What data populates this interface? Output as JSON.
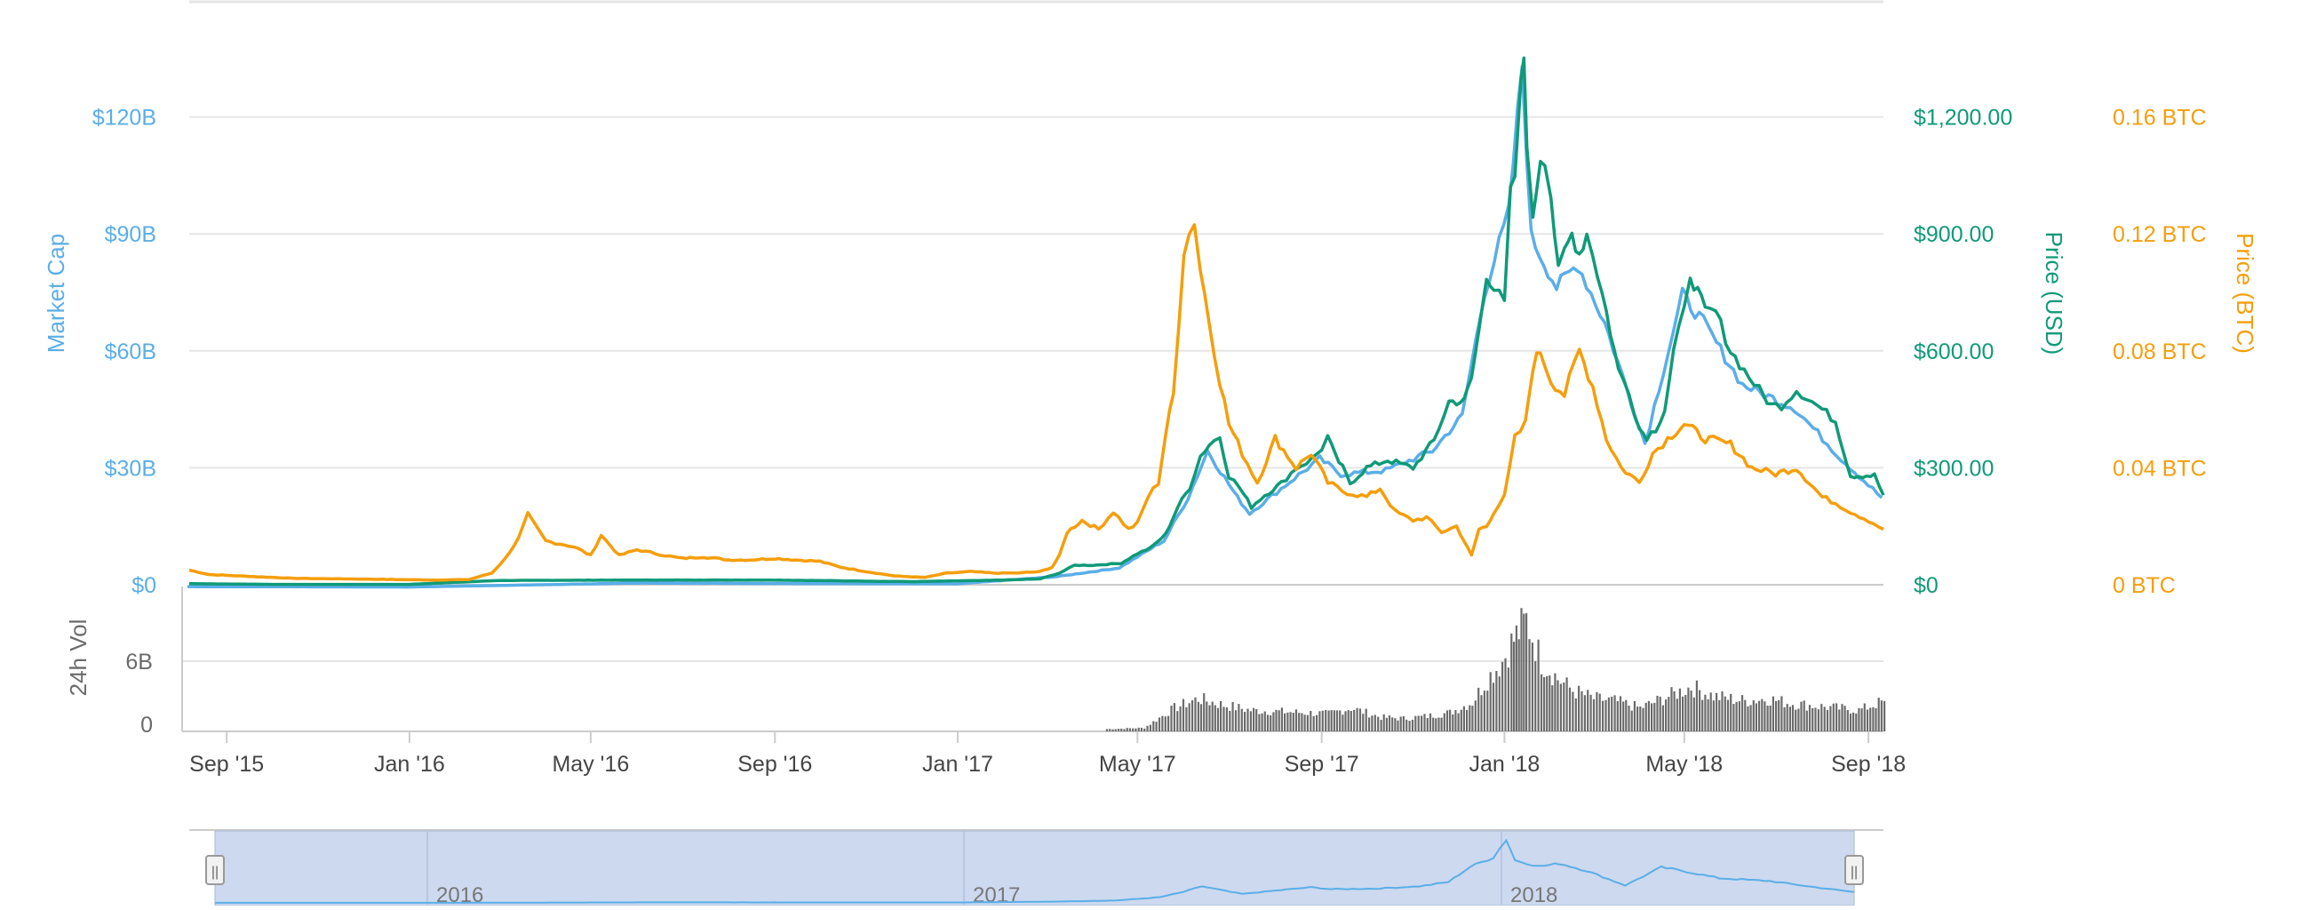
{
  "colors": {
    "market_cap": "#5aaee8",
    "price_usd": "#0f9a78",
    "price_btc": "#f59e0b",
    "volume": "#6b6b6b",
    "axis_muted": "#6b6b6b",
    "grid": "#e6e6e6",
    "navigator_fill": "#cdd9ef",
    "navigator_line": "#5aaee8"
  },
  "chart_data": {
    "type": "line",
    "title": "",
    "legend": "none",
    "grid": true,
    "x_tick_labels": [
      "Sep '15",
      "Jan '16",
      "May '16",
      "Sep '16",
      "Jan '17",
      "May '17",
      "Sep '17",
      "Jan '18",
      "May '18",
      "Sep '18"
    ],
    "x_range": [
      "2015-08-07",
      "2018-09-11"
    ],
    "axes": {
      "market_cap": {
        "label": "Market Cap",
        "ticks": [
          "$0",
          "$30B",
          "$60B",
          "$90B",
          "$120B"
        ],
        "range": [
          0,
          150
        ]
      },
      "price_usd": {
        "label": "Price (USD)",
        "ticks": [
          "$0",
          "$300.00",
          "$600.00",
          "$900.00",
          "$1,200.00"
        ],
        "range": [
          0,
          1500
        ]
      },
      "price_btc": {
        "label": "Price (BTC)",
        "ticks": [
          "0 BTC",
          "0.04 BTC",
          "0.08 BTC",
          "0.12 BTC",
          "0.16 BTC"
        ],
        "range": [
          0,
          0.2
        ]
      },
      "volume": {
        "label": "24h Vol",
        "ticks": [
          "0",
          "6B"
        ],
        "range": [
          0,
          12
        ]
      }
    },
    "series": [
      {
        "name": "Price (BTC)",
        "axis": "price_btc",
        "x": [
          "2015-08-07",
          "2015-08-20",
          "2015-09-10",
          "2015-10-15",
          "2015-11-20",
          "2015-12-20",
          "2016-01-20",
          "2016-02-10",
          "2016-02-25",
          "2016-03-05",
          "2016-03-14",
          "2016-03-20",
          "2016-04-01",
          "2016-04-20",
          "2016-05-01",
          "2016-05-08",
          "2016-05-20",
          "2016-06-01",
          "2016-06-10",
          "2016-06-20",
          "2016-07-01",
          "2016-07-15",
          "2016-08-01",
          "2016-08-15",
          "2016-09-01",
          "2016-09-15",
          "2016-10-01",
          "2016-10-15",
          "2016-11-01",
          "2016-11-20",
          "2016-12-10",
          "2016-12-25",
          "2017-01-10",
          "2017-01-25",
          "2017-02-10",
          "2017-02-25",
          "2017-03-05",
          "2017-03-10",
          "2017-03-15",
          "2017-03-20",
          "2017-03-25",
          "2017-04-05",
          "2017-04-15",
          "2017-04-25",
          "2017-05-01",
          "2017-05-08",
          "2017-05-15",
          "2017-05-20",
          "2017-05-25",
          "2017-06-01",
          "2017-06-08",
          "2017-06-12",
          "2017-06-18",
          "2017-06-25",
          "2017-07-01",
          "2017-07-10",
          "2017-07-20",
          "2017-08-01",
          "2017-08-15",
          "2017-08-25",
          "2017-09-05",
          "2017-09-15",
          "2017-10-01",
          "2017-10-10",
          "2017-10-20",
          "2017-11-01",
          "2017-11-10",
          "2017-11-20",
          "2017-11-30",
          "2017-12-05",
          "2017-12-10",
          "2017-12-15",
          "2017-12-20",
          "2017-12-25",
          "2018-01-01",
          "2018-01-08",
          "2018-01-15",
          "2018-01-20",
          "2018-01-25",
          "2018-02-01",
          "2018-02-10",
          "2018-02-20",
          "2018-03-01",
          "2018-03-10",
          "2018-03-20",
          "2018-04-01",
          "2018-04-10",
          "2018-04-20",
          "2018-05-01",
          "2018-05-15",
          "2018-06-01",
          "2018-06-15",
          "2018-07-01",
          "2018-07-15",
          "2018-08-01",
          "2018-08-10",
          "2018-08-20",
          "2018-09-01",
          "2018-09-11"
        ],
        "values": [
          0.005,
          0.0035,
          0.003,
          0.0022,
          0.002,
          0.0018,
          0.0016,
          0.0018,
          0.004,
          0.009,
          0.016,
          0.024,
          0.015,
          0.013,
          0.01,
          0.017,
          0.01,
          0.012,
          0.011,
          0.01,
          0.009,
          0.0095,
          0.0085,
          0.0085,
          0.009,
          0.0085,
          0.008,
          0.006,
          0.0045,
          0.003,
          0.0025,
          0.004,
          0.0045,
          0.004,
          0.004,
          0.0045,
          0.006,
          0.01,
          0.018,
          0.02,
          0.022,
          0.019,
          0.025,
          0.019,
          0.021,
          0.03,
          0.035,
          0.052,
          0.065,
          0.115,
          0.125,
          0.108,
          0.09,
          0.07,
          0.055,
          0.045,
          0.035,
          0.05,
          0.04,
          0.045,
          0.035,
          0.032,
          0.03,
          0.033,
          0.025,
          0.022,
          0.023,
          0.018,
          0.02,
          0.015,
          0.01,
          0.019,
          0.02,
          0.025,
          0.03,
          0.05,
          0.055,
          0.075,
          0.08,
          0.07,
          0.065,
          0.08,
          0.068,
          0.05,
          0.04,
          0.035,
          0.045,
          0.05,
          0.055,
          0.05,
          0.048,
          0.04,
          0.038,
          0.04,
          0.03,
          0.028,
          0.025,
          0.022,
          0.019
        ]
      },
      {
        "name": "Price (USD)",
        "axis": "price_usd",
        "x": [
          "2015-08-07",
          "2015-10-01",
          "2016-01-01",
          "2016-03-01",
          "2016-06-01",
          "2016-09-01",
          "2016-12-01",
          "2017-01-01",
          "2017-02-01",
          "2017-02-25",
          "2017-03-10",
          "2017-03-20",
          "2017-04-01",
          "2017-04-20",
          "2017-05-01",
          "2017-05-10",
          "2017-05-20",
          "2017-05-28",
          "2017-06-05",
          "2017-06-12",
          "2017-06-18",
          "2017-06-25",
          "2017-07-01",
          "2017-07-08",
          "2017-07-16",
          "2017-07-25",
          "2017-08-05",
          "2017-08-15",
          "2017-08-25",
          "2017-09-01",
          "2017-09-05",
          "2017-09-10",
          "2017-09-15",
          "2017-09-20",
          "2017-10-01",
          "2017-10-15",
          "2017-11-01",
          "2017-11-15",
          "2017-11-25",
          "2017-11-30",
          "2017-12-05",
          "2017-12-10",
          "2017-12-15",
          "2017-12-20",
          "2017-12-25",
          "2018-01-01",
          "2018-01-05",
          "2018-01-08",
          "2018-01-10",
          "2018-01-12",
          "2018-01-14",
          "2018-01-16",
          "2018-01-20",
          "2018-01-25",
          "2018-01-28",
          "2018-02-01",
          "2018-02-06",
          "2018-02-10",
          "2018-02-15",
          "2018-02-20",
          "2018-02-25",
          "2018-03-01",
          "2018-03-10",
          "2018-03-18",
          "2018-03-25",
          "2018-04-01",
          "2018-04-06",
          "2018-04-12",
          "2018-04-18",
          "2018-04-24",
          "2018-05-01",
          "2018-05-05",
          "2018-05-10",
          "2018-05-15",
          "2018-05-22",
          "2018-06-01",
          "2018-06-10",
          "2018-06-20",
          "2018-06-28",
          "2018-07-05",
          "2018-07-15",
          "2018-07-22",
          "2018-08-01",
          "2018-08-10",
          "2018-08-15",
          "2018-08-20",
          "2018-08-28",
          "2018-09-05",
          "2018-09-11"
        ],
        "values": [
          2.8,
          1,
          1,
          11,
          12,
          12,
          8,
          10,
          12,
          15,
          30,
          50,
          50,
          55,
          80,
          95,
          130,
          200,
          250,
          330,
          360,
          380,
          280,
          250,
          200,
          230,
          260,
          300,
          320,
          350,
          380,
          330,
          300,
          260,
          300,
          320,
          300,
          370,
          470,
          470,
          470,
          530,
          650,
          800,
          760,
          720,
          1000,
          1050,
          1150,
          1300,
          1380,
          1100,
          950,
          1100,
          1100,
          1000,
          800,
          850,
          900,
          850,
          900,
          850,
          700,
          550,
          500,
          400,
          380,
          400,
          450,
          600,
          700,
          800,
          750,
          700,
          700,
          600,
          550,
          500,
          460,
          460,
          500,
          480,
          450,
          420,
          350,
          280,
          280,
          280,
          230
        ]
      },
      {
        "name": "Market Cap",
        "axis": "market_cap",
        "x": [
          "2015-08-07",
          "2016-01-01",
          "2016-06-01",
          "2017-01-01",
          "2017-03-10",
          "2017-04-20",
          "2017-05-20",
          "2017-06-05",
          "2017-06-18",
          "2017-07-08",
          "2017-07-16",
          "2017-08-15",
          "2017-09-01",
          "2017-09-15",
          "2017-10-15",
          "2017-11-15",
          "2017-12-05",
          "2017-12-20",
          "2018-01-05",
          "2018-01-14",
          "2018-01-20",
          "2018-02-06",
          "2018-02-20",
          "2018-03-10",
          "2018-04-06",
          "2018-05-01",
          "2018-05-15",
          "2018-06-10",
          "2018-07-15",
          "2018-08-15",
          "2018-09-11"
        ],
        "values": [
          0.2,
          0.1,
          1.1,
          0.9,
          2.8,
          5,
          12,
          23,
          35,
          23,
          19,
          28,
          33,
          29,
          30,
          35,
          44,
          76,
          96,
          134,
          90,
          77,
          83,
          68,
          37,
          75,
          68,
          52,
          46,
          33,
          23
        ]
      },
      {
        "name": "24h Vol",
        "axis": "volume",
        "x": [
          "2017-04-10",
          "2017-05-05",
          "2017-05-25",
          "2017-06-10",
          "2017-06-25",
          "2017-07-15",
          "2017-08-01",
          "2017-08-20",
          "2017-09-05",
          "2017-09-20",
          "2017-10-10",
          "2017-10-25",
          "2017-11-10",
          "2017-11-25",
          "2017-12-10",
          "2017-12-20",
          "2017-12-30",
          "2018-01-05",
          "2018-01-10",
          "2018-01-15",
          "2018-01-25",
          "2018-02-05",
          "2018-02-15",
          "2018-03-01",
          "2018-03-15",
          "2018-04-01",
          "2018-04-20",
          "2018-05-05",
          "2018-05-20",
          "2018-06-10",
          "2018-06-25",
          "2018-07-10",
          "2018-07-25",
          "2018-08-10",
          "2018-08-25",
          "2018-09-11"
        ],
        "values": [
          0.2,
          0.3,
          2.0,
          2.8,
          2.3,
          1.8,
          1.7,
          1.6,
          1.5,
          2.0,
          1.2,
          1.1,
          1.3,
          1.6,
          2.5,
          4.5,
          6.0,
          7.5,
          8.5,
          9.5,
          6.0,
          4.5,
          3.5,
          2.8,
          2.6,
          2.0,
          3.0,
          3.8,
          3.0,
          2.6,
          2.8,
          2.4,
          2.2,
          2.0,
          1.8,
          2.6
        ]
      }
    ]
  },
  "navigator": {
    "year_labels": [
      "2016",
      "2017",
      "2018"
    ],
    "handle_glyph": "||"
  }
}
